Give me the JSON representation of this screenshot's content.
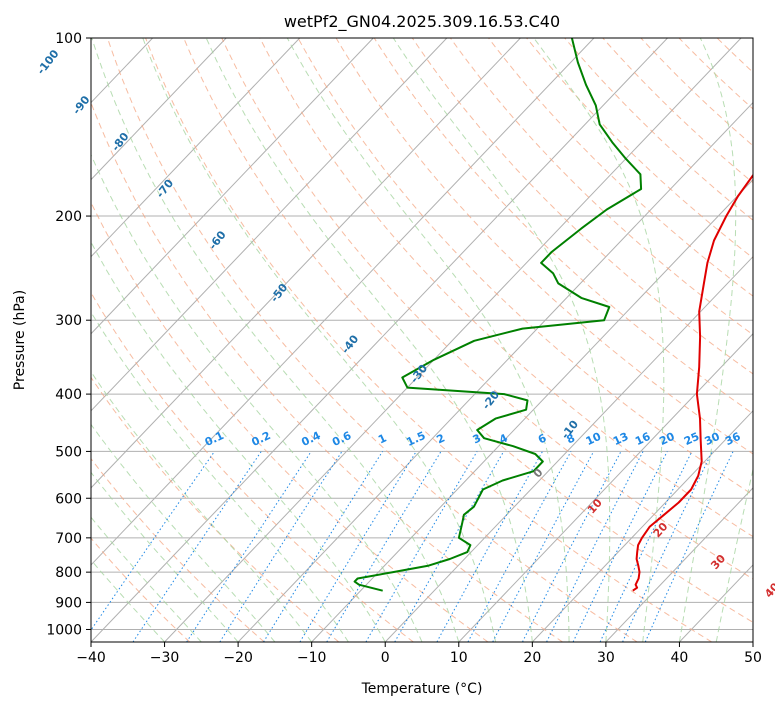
{
  "chart_data": {
    "type": "skewt",
    "title": "wetPf2_GN04.2025.309.16.53.C40",
    "xlabel": "Temperature (°C)",
    "ylabel": "Pressure (hPa)",
    "xlim": [
      -40,
      50
    ],
    "ylim": [
      1050,
      100
    ],
    "grid": true,
    "x_ticks": [
      -40,
      -30,
      -20,
      -10,
      0,
      10,
      20,
      30,
      40,
      50
    ],
    "y_ticks": [
      100,
      200,
      300,
      400,
      500,
      600,
      700,
      800,
      900,
      1000
    ],
    "colors": {
      "temperature": "#e00000",
      "dewpoint": "#008000",
      "isotherm": "#b0b0b0",
      "dry_adiabat": "#f4a582",
      "moist_adiabat": "#a6d4a0",
      "mixing_ratio": "#1e88e5",
      "dry_label": "#1f6fa8",
      "moist_label": "#d32f2f"
    },
    "series": [
      {
        "name": "Temperature",
        "points": [
          [
            860,
            27.0
          ],
          [
            850,
            27.2
          ],
          [
            840,
            26.6
          ],
          [
            820,
            26.2
          ],
          [
            800,
            25.5
          ],
          [
            780,
            24.5
          ],
          [
            760,
            23.4
          ],
          [
            740,
            22.6
          ],
          [
            720,
            21.8
          ],
          [
            700,
            21.4
          ],
          [
            670,
            21.0
          ],
          [
            640,
            21.4
          ],
          [
            610,
            21.8
          ],
          [
            580,
            21.8
          ],
          [
            550,
            21.0
          ],
          [
            520,
            19.6
          ],
          [
            480,
            16.8
          ],
          [
            440,
            13.8
          ],
          [
            400,
            10.2
          ],
          [
            360,
            7.0
          ],
          [
            320,
            3.2
          ],
          [
            290,
            -0.2
          ],
          [
            260,
            -3.2
          ],
          [
            240,
            -5.4
          ],
          [
            220,
            -7.4
          ],
          [
            200,
            -8.9
          ],
          [
            185,
            -9.9
          ],
          [
            170,
            -10.6
          ],
          [
            160,
            -10.6
          ],
          [
            150,
            -9.4
          ],
          [
            143,
            -7.4
          ],
          [
            137,
            -4.6
          ],
          [
            131,
            -2.6
          ],
          [
            127,
            -2.0
          ],
          [
            123,
            -2.2
          ],
          [
            118,
            -2.9
          ],
          [
            112,
            -3.8
          ],
          [
            106,
            -4.2
          ],
          [
            100,
            -4.2
          ]
        ]
      },
      {
        "name": "Dewpoint",
        "points": [
          [
            860,
            -7.0
          ],
          [
            840,
            -11.0
          ],
          [
            830,
            -12.0
          ],
          [
            820,
            -12.0
          ],
          [
            800,
            -8.0
          ],
          [
            780,
            -4.0
          ],
          [
            760,
            -2.0
          ],
          [
            740,
            -0.5
          ],
          [
            720,
            -1.0
          ],
          [
            700,
            -3.5
          ],
          [
            660,
            -5.0
          ],
          [
            640,
            -5.8
          ],
          [
            620,
            -5.5
          ],
          [
            600,
            -6.0
          ],
          [
            580,
            -6.5
          ],
          [
            560,
            -5.0
          ],
          [
            540,
            -2.0
          ],
          [
            520,
            -2.0
          ],
          [
            505,
            -4.0
          ],
          [
            490,
            -8.0
          ],
          [
            475,
            -13.0
          ],
          [
            460,
            -15.0
          ],
          [
            440,
            -14.0
          ],
          [
            425,
            -11.0
          ],
          [
            410,
            -12.0
          ],
          [
            400,
            -16.0
          ],
          [
            395,
            -23.0
          ],
          [
            390,
            -30.0
          ],
          [
            375,
            -32.0
          ],
          [
            350,
            -30.0
          ],
          [
            325,
            -27.0
          ],
          [
            310,
            -22.0
          ],
          [
            300,
            -12.0
          ],
          [
            285,
            -13.0
          ],
          [
            275,
            -18.0
          ],
          [
            260,
            -23.0
          ],
          [
            250,
            -25.0
          ],
          [
            240,
            -28.0
          ],
          [
            230,
            -28.0
          ],
          [
            210,
            -27.0
          ],
          [
            195,
            -26.0
          ],
          [
            180,
            -24.0
          ],
          [
            170,
            -26.0
          ],
          [
            160,
            -30.0
          ],
          [
            150,
            -34.0
          ],
          [
            140,
            -38.0
          ],
          [
            130,
            -41.0
          ],
          [
            120,
            -45.0
          ],
          [
            110,
            -49.0
          ],
          [
            100,
            -53.0
          ]
        ]
      }
    ],
    "dry_adiabat_labels": [
      "-100",
      "-90",
      "-80",
      "-70",
      "-60",
      "-50",
      "-40",
      "-30",
      "-20",
      "-10"
    ],
    "moist_adiabat_labels": [
      "0",
      "10",
      "20",
      "30",
      "40"
    ],
    "mixing_ratio_labels": [
      "0.1",
      "0.2",
      "0.4",
      "0.6",
      "1",
      "1.5",
      "2",
      "3",
      "4",
      "6",
      "8",
      "10",
      "13",
      "16",
      "20",
      "25",
      "30",
      "36"
    ]
  }
}
